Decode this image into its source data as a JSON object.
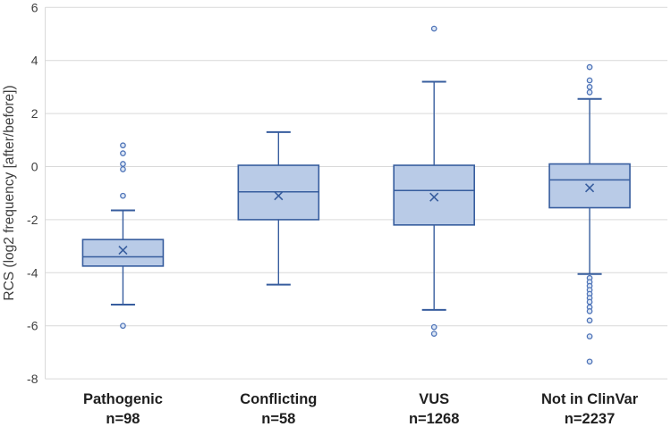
{
  "chart_data": {
    "type": "boxplot",
    "title": "",
    "ylabel": "RCS (log2 frequency [after/before])",
    "xlabel": "",
    "ylim": [
      -8,
      6
    ],
    "yticks": [
      6,
      4,
      2,
      0,
      -2,
      -4,
      -6,
      -8
    ],
    "grid": true,
    "legend": "none",
    "categories": [
      "Pathogenic",
      "Conflicting",
      "VUS",
      "Not in ClinVar"
    ],
    "n_labels": [
      "n=98",
      "n=58",
      "n=1268",
      "n=2237"
    ],
    "series": [
      {
        "name": "Pathogenic",
        "n": 98,
        "whisker_low": -5.2,
        "q1": -3.75,
        "median": -3.4,
        "q3": -2.75,
        "whisker_high": -1.65,
        "mean": -3.15,
        "outliers": [
          0.8,
          0.5,
          0.1,
          -0.1,
          -1.1,
          -6.0
        ]
      },
      {
        "name": "Conflicting",
        "n": 58,
        "whisker_low": -4.45,
        "q1": -2.0,
        "median": -0.95,
        "q3": 0.05,
        "whisker_high": 1.3,
        "mean": -1.1,
        "outliers": []
      },
      {
        "name": "VUS",
        "n": 1268,
        "whisker_low": -5.4,
        "q1": -2.2,
        "median": -0.9,
        "q3": 0.05,
        "whisker_high": 3.2,
        "mean": -1.15,
        "outliers": [
          5.2,
          -6.05,
          -6.3
        ]
      },
      {
        "name": "Not in ClinVar",
        "n": 2237,
        "whisker_low": -4.05,
        "q1": -1.55,
        "median": -0.5,
        "q3": 0.1,
        "whisker_high": 2.55,
        "mean": -0.8,
        "outliers": [
          3.75,
          3.25,
          3.0,
          2.8,
          -4.2,
          -4.35,
          -4.5,
          -4.65,
          -4.8,
          -4.95,
          -5.1,
          -5.3,
          -5.45,
          -5.8,
          -6.4,
          -7.35
        ]
      }
    ],
    "colors": {
      "box_fill": "#b9cbe7",
      "box_stroke": "#375d9e",
      "whisker": "#375d9e",
      "median": "#375d9e",
      "mean_marker": "#375d9e",
      "outlier_stroke": "#4f74b8",
      "outlier_fill": "#dde7f5",
      "grid": "#d9d9d9",
      "axis_line": "#d9d9d9",
      "axis_text": "#3f3f3f",
      "category_text": "#1f1f1f"
    }
  }
}
